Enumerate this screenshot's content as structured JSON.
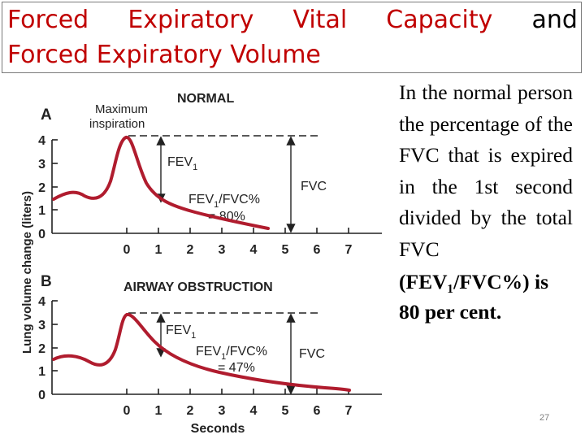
{
  "slide": {
    "title_words": [
      "Forced",
      "Expiratory",
      "Vital",
      "Capacity",
      "and"
    ],
    "title_line2": "Forced Expiratory Volume",
    "description": "In the normal person the percentage of the FVC that is expired in the 1st second divided by the total FVC",
    "description_bold": "(FEV₁/FVC%) is 80 per cent.",
    "page_number": "27"
  },
  "diagram": {
    "y_axis_label": "Lung volume change (liters)",
    "x_axis_label": "Seconds",
    "x_ticks": [
      "0",
      "1",
      "2",
      "3",
      "4",
      "5",
      "6",
      "7"
    ],
    "y_ticks": [
      "0",
      "1",
      "2",
      "3",
      "4"
    ],
    "panel_a": {
      "letter": "A",
      "title": "NORMAL",
      "max_line1": "Maximum",
      "max_line2": "inspiration",
      "fev_base": "FEV",
      "fev_sub": "1",
      "ratio_pre": "FEV",
      "ratio_sub": "1",
      "ratio_post": "/FVC%",
      "ratio_value": "= 80%",
      "fvc": "FVC"
    },
    "panel_b": {
      "letter": "B",
      "title": "AIRWAY OBSTRUCTION",
      "fev_base": "FEV",
      "fev_sub": "1",
      "ratio_pre": "FEV",
      "ratio_sub": "1",
      "ratio_post": "/FVC%",
      "ratio_value": "= 47%",
      "fvc": "FVC"
    },
    "curve_color": "#b01c2e"
  }
}
